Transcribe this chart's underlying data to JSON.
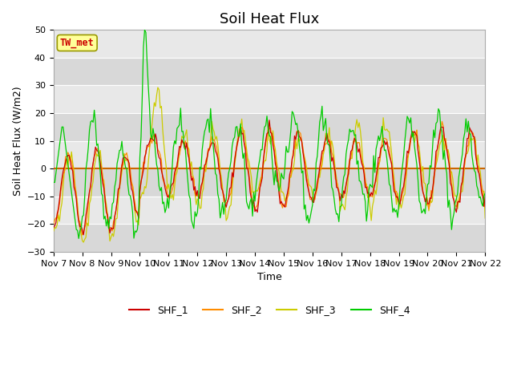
{
  "title": "Soil Heat Flux",
  "xlabel": "Time",
  "ylabel": "Soil Heat Flux (W/m2)",
  "ylim": [
    -30,
    50
  ],
  "xlim": [
    0,
    360
  ],
  "x_tick_labels": [
    "Nov 7",
    "Nov 8",
    "Nov 9",
    "Nov 10",
    "Nov 11",
    "Nov 12",
    "Nov 13",
    "Nov 14",
    "Nov 15",
    "Nov 16",
    "Nov 17",
    "Nov 18",
    "Nov 19",
    "Nov 20",
    "Nov 21",
    "Nov 22"
  ],
  "x_tick_positions": [
    0,
    24,
    48,
    72,
    96,
    120,
    144,
    168,
    192,
    216,
    240,
    264,
    288,
    312,
    336,
    360
  ],
  "line_colors": [
    "#cc0000",
    "#ff8c00",
    "#cccc00",
    "#00cc00"
  ],
  "line_names": [
    "SHF_1",
    "SHF_2",
    "SHF_3",
    "SHF_4"
  ],
  "legend_label": "TW_met",
  "legend_label_color": "#cc0000",
  "legend_box_color": "#ffff99",
  "plot_bg_color": "#e8e8e8",
  "zero_line_color": "#cc6600",
  "title_fontsize": 13,
  "axis_fontsize": 9,
  "tick_fontsize": 8
}
